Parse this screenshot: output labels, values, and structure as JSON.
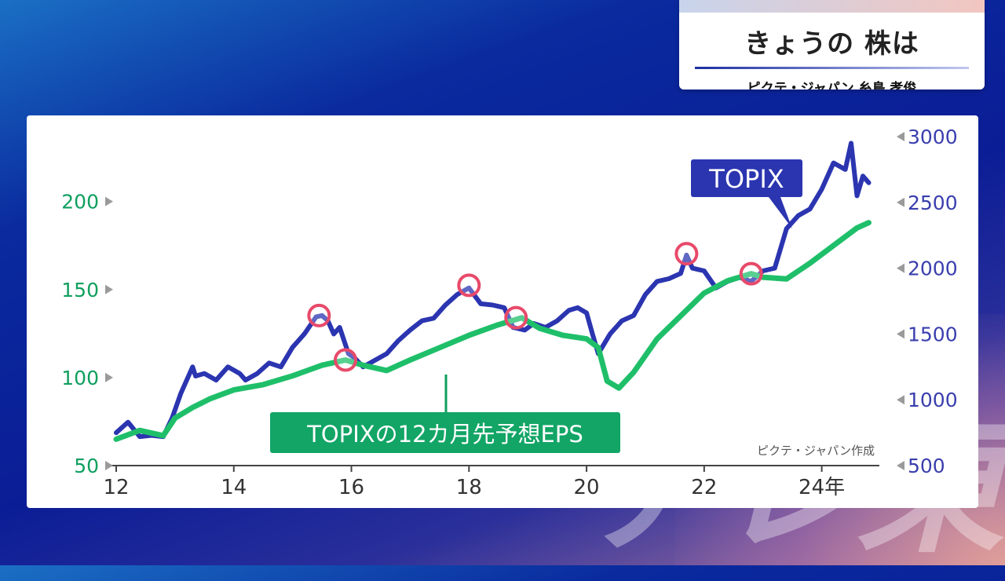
{
  "caption": {
    "title": "きょうの 株は",
    "subtitle": "ピクテ・ジャパン 糸島 孝俊"
  },
  "watermark": "テレ東",
  "colors": {
    "topix": "#2b35b0",
    "eps": "#1fbf6a",
    "left_axis": "#0e9f5e",
    "right_axis": "#3a3fae",
    "marker": "#e84a6a"
  },
  "chart_data": {
    "type": "line",
    "xlim": [
      2012,
      2024.9
    ],
    "x_ticks": [
      {
        "value": 2012,
        "label": "12"
      },
      {
        "value": 2014,
        "label": "14"
      },
      {
        "value": 2016,
        "label": "16"
      },
      {
        "value": 2018,
        "label": "18"
      },
      {
        "value": 2020,
        "label": "20"
      },
      {
        "value": 2022,
        "label": "22"
      },
      {
        "value": 2024,
        "label": "24年"
      }
    ],
    "y_left": {
      "lim": [
        50,
        240
      ],
      "ticks": [
        "50",
        "100",
        "150",
        "200"
      ]
    },
    "y_right": {
      "lim": [
        500,
        3000
      ],
      "ticks": [
        "500",
        "1000",
        "1500",
        "2000",
        "2500",
        "3000"
      ]
    },
    "series": [
      {
        "name": "TOPIX",
        "axis": "right",
        "x": [
          2012.0,
          2012.2,
          2012.4,
          2012.6,
          2012.8,
          2012.95,
          2013.1,
          2013.3,
          2013.35,
          2013.5,
          2013.7,
          2013.9,
          2014.1,
          2014.2,
          2014.4,
          2014.6,
          2014.8,
          2015.0,
          2015.2,
          2015.4,
          2015.5,
          2015.6,
          2015.7,
          2015.8,
          2015.95,
          2016.05,
          2016.2,
          2016.4,
          2016.6,
          2016.8,
          2017.0,
          2017.2,
          2017.4,
          2017.6,
          2017.8,
          2018.0,
          2018.05,
          2018.2,
          2018.4,
          2018.6,
          2018.75,
          2018.95,
          2019.1,
          2019.3,
          2019.5,
          2019.7,
          2019.85,
          2020.0,
          2020.1,
          2020.2,
          2020.4,
          2020.6,
          2020.8,
          2021.0,
          2021.2,
          2021.4,
          2021.6,
          2021.7,
          2021.8,
          2022.0,
          2022.2,
          2022.4,
          2022.6,
          2022.8,
          2023.0,
          2023.2,
          2023.4,
          2023.6,
          2023.8,
          2024.0,
          2024.2,
          2024.4,
          2024.5,
          2024.6,
          2024.7,
          2024.8
        ],
        "y": [
          750,
          830,
          720,
          730,
          720,
          860,
          1050,
          1250,
          1180,
          1200,
          1150,
          1250,
          1200,
          1150,
          1200,
          1280,
          1250,
          1400,
          1500,
          1630,
          1640,
          1600,
          1500,
          1550,
          1350,
          1320,
          1250,
          1300,
          1350,
          1450,
          1530,
          1600,
          1620,
          1720,
          1800,
          1850,
          1820,
          1730,
          1720,
          1700,
          1550,
          1530,
          1580,
          1550,
          1600,
          1680,
          1700,
          1660,
          1500,
          1350,
          1500,
          1600,
          1640,
          1800,
          1900,
          1920,
          1960,
          2100,
          2000,
          1980,
          1850,
          1900,
          1930,
          1900,
          1980,
          2000,
          2300,
          2400,
          2450,
          2600,
          2800,
          2750,
          2950,
          2550,
          2700,
          2650
        ]
      },
      {
        "name": "TOPIXの12カ月先予想EPS",
        "axis": "left",
        "x": [
          2012.0,
          2012.4,
          2012.8,
          2013.0,
          2013.3,
          2013.6,
          2014.0,
          2014.5,
          2015.0,
          2015.5,
          2015.9,
          2016.2,
          2016.6,
          2017.0,
          2017.5,
          2018.0,
          2018.5,
          2018.9,
          2019.2,
          2019.6,
          2020.0,
          2020.2,
          2020.35,
          2020.55,
          2020.8,
          2021.2,
          2021.6,
          2022.0,
          2022.4,
          2022.8,
          2023.0,
          2023.4,
          2023.8,
          2024.2,
          2024.6,
          2024.8
        ],
        "y": [
          65,
          70,
          67,
          77,
          83,
          88,
          93,
          96,
          101,
          107,
          110,
          107,
          104,
          110,
          117,
          124,
          130,
          134,
          128,
          124,
          122,
          117,
          98,
          94,
          103,
          122,
          135,
          148,
          155,
          159,
          157,
          156,
          165,
          175,
          185,
          188
        ]
      }
    ],
    "annotations": [
      {
        "text": "TOPIX",
        "kind": "callout"
      },
      {
        "text": "TOPIXの12カ月先予想EPS",
        "kind": "callout"
      },
      {
        "text": "ピクテ・ジャパン作成",
        "kind": "source"
      }
    ],
    "markers": [
      {
        "axis": "right",
        "x": 2015.45,
        "y": 1640
      },
      {
        "axis": "right",
        "x": 2018.0,
        "y": 1870
      },
      {
        "axis": "right",
        "x": 2021.7,
        "y": 2110
      },
      {
        "axis": "left",
        "x": 2015.9,
        "y": 110
      },
      {
        "axis": "left",
        "x": 2018.8,
        "y": 134
      },
      {
        "axis": "left",
        "x": 2022.8,
        "y": 159
      }
    ]
  }
}
